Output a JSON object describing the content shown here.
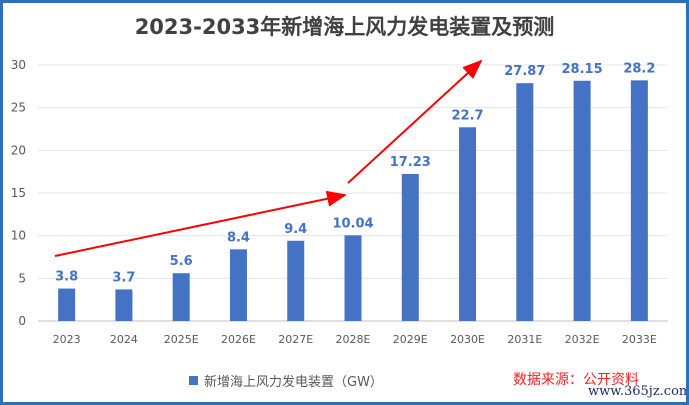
{
  "chart_data": {
    "type": "bar",
    "title": "2023-2033年新增海上风力发电装置及预测",
    "categories": [
      "2023",
      "2024",
      "2025E",
      "2026E",
      "2027E",
      "2028E",
      "2029E",
      "2030E",
      "2031E",
      "2032E",
      "2033E"
    ],
    "series": [
      {
        "name": "新增海上风力发电装置（GW）",
        "values": [
          3.8,
          3.7,
          5.6,
          8.4,
          9.4,
          10.04,
          17.23,
          22.7,
          27.87,
          28.15,
          28.2
        ]
      }
    ],
    "data_labels": [
      "3.8",
      "3.7",
      "5.6",
      "8.4",
      "9.4",
      "10.04",
      "17.23",
      "22.7",
      "27.87",
      "28.15",
      "28.2"
    ],
    "ylim": [
      0,
      30
    ],
    "yticks": [
      0,
      5,
      10,
      15,
      20,
      25,
      30
    ],
    "grid": true,
    "legend_position": "bottom",
    "bar_color": "#4472c4",
    "label_color": "#4472c4",
    "annotation_arrows_color": "#ff0000"
  },
  "source": "数据来源：公开资料",
  "watermark": "www.365jz.com"
}
